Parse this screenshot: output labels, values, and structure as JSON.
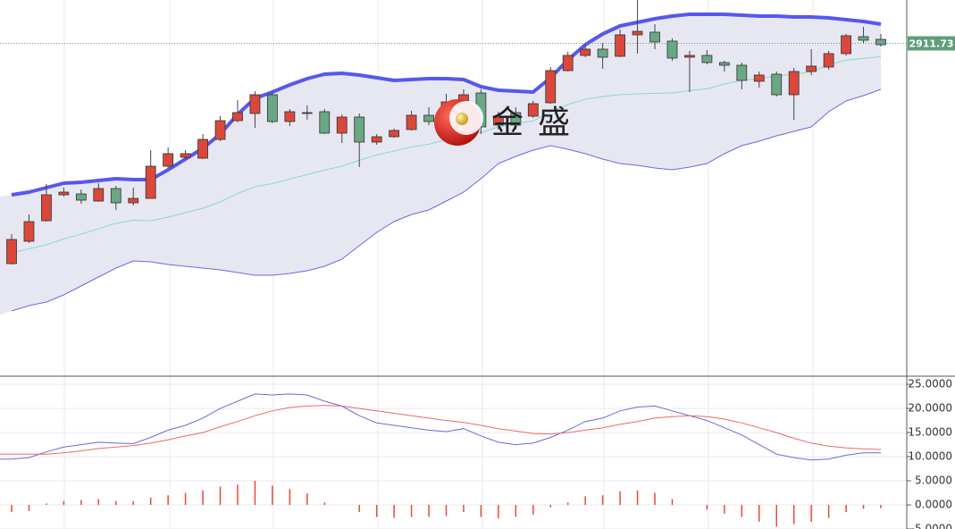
{
  "chart_data": [
    {
      "type": "candlestick",
      "ylim": [
        2726,
        2936
      ],
      "up_color": "#d9483b",
      "down_color": "#6aa784",
      "open": [
        2788.5,
        2801,
        2812.5,
        2827,
        2827.5,
        2823.5,
        2830.5,
        2822.5,
        2825,
        2843,
        2848,
        2847.5,
        2858,
        2868.5,
        2872.5,
        2883,
        2868,
        2873,
        2873.5,
        2861.5,
        2870.5,
        2856.5,
        2859.5,
        2863.5,
        2871.5,
        2872,
        2871,
        2884,
        2866,
        2873,
        2871,
        2878.5,
        2896.5,
        2905,
        2908.5,
        2904.5,
        2916.5,
        2918,
        2913,
        2904,
        2905,
        2901,
        2899.5,
        2890.5,
        2894.5,
        2883,
        2896,
        2898.5,
        2906,
        2915.5,
        2914
      ],
      "high": [
        2805,
        2816,
        2833,
        2831,
        2830,
        2833.5,
        2832,
        2831,
        2852,
        2853.5,
        2852,
        2861,
        2871,
        2880,
        2885,
        2884.5,
        2875,
        2877,
        2875,
        2872,
        2872.5,
        2861,
        2864,
        2874,
        2876,
        2883.5,
        2886,
        2886,
        2873.5,
        2876,
        2879.5,
        2898.5,
        2907,
        2911,
        2912,
        2919.5,
        2936,
        2922.5,
        2914.5,
        2907.5,
        2908,
        2902,
        2901,
        2896,
        2896,
        2898,
        2908.5,
        2907.5,
        2917,
        2921,
        2917
      ],
      "low": [
        2788,
        2800,
        2812,
        2826,
        2822,
        2823,
        2818.5,
        2821,
        2825,
        2842,
        2847,
        2847,
        2857,
        2867.5,
        2864.5,
        2867,
        2865.5,
        2869,
        2861,
        2856,
        2842.5,
        2855,
        2859,
        2863,
        2866,
        2870,
        2868.5,
        2861,
        2863.5,
        2863.5,
        2870,
        2878,
        2896,
        2904,
        2897.5,
        2904,
        2906,
        2908.5,
        2902,
        2884.5,
        2900,
        2896,
        2886,
        2887,
        2882,
        2869,
        2894,
        2897,
        2905,
        2912,
        2910
      ],
      "close": [
        2802,
        2812,
        2827,
        2828.5,
        2824,
        2830.5,
        2822.5,
        2825,
        2843,
        2850,
        2850,
        2858,
        2868.5,
        2873,
        2883,
        2868,
        2873.5,
        2873,
        2861.5,
        2870.5,
        2856.5,
        2859.5,
        2863,
        2871.5,
        2868,
        2879,
        2883,
        2865,
        2871,
        2866,
        2878,
        2896.5,
        2905,
        2908.5,
        2904,
        2916.5,
        2918.5,
        2912.5,
        2903.5,
        2905,
        2901,
        2899.5,
        2891,
        2894,
        2883,
        2896,
        2899,
        2906,
        2916,
        2913.5,
        2911
      ],
      "upper": [
        2827,
        2828.5,
        2831,
        2833.5,
        2834,
        2835,
        2836,
        2835.5,
        2835.5,
        2841,
        2847,
        2853,
        2861,
        2872,
        2881,
        2884.5,
        2888.5,
        2892,
        2894.5,
        2895,
        2894,
        2892.5,
        2891,
        2891.5,
        2892,
        2892,
        2891.5,
        2887.5,
        2885.5,
        2885,
        2884.5,
        2892.5,
        2902.5,
        2911,
        2917,
        2921.5,
        2923.5,
        2925.5,
        2927,
        2928,
        2928,
        2928,
        2927.5,
        2927,
        2927,
        2926.5,
        2926.5,
        2926,
        2925,
        2924,
        2922.5
      ],
      "middle": [
        2794.5,
        2796.8,
        2799,
        2802.3,
        2805,
        2808,
        2811,
        2812.8,
        2812.5,
        2814.5,
        2817,
        2819.5,
        2823,
        2827.8,
        2831.5,
        2833.3,
        2835.8,
        2838.3,
        2840.8,
        2843,
        2846.3,
        2849.3,
        2851.5,
        2853.8,
        2855.3,
        2857.8,
        2860,
        2861.8,
        2865,
        2866.8,
        2868.3,
        2873.5,
        2877.5,
        2880.5,
        2882,
        2883,
        2883.5,
        2883.8,
        2884,
        2885.3,
        2886.3,
        2889,
        2891,
        2892,
        2893.5,
        2894.5,
        2895.8,
        2899.8,
        2902.3,
        2903.3,
        2904.3
      ],
      "lower": [
        2762,
        2765,
        2767,
        2771,
        2776,
        2781,
        2786,
        2790,
        2789.5,
        2788,
        2787,
        2786,
        2785,
        2783.5,
        2782,
        2782,
        2783,
        2784.5,
        2787,
        2791,
        2798.5,
        2806,
        2812,
        2816,
        2818.5,
        2823.5,
        2828.5,
        2836,
        2844.5,
        2848.5,
        2852,
        2854.5,
        2852.5,
        2850,
        2847,
        2844.5,
        2843.5,
        2842,
        2841,
        2842.5,
        2844.5,
        2850,
        2854.5,
        2857,
        2860,
        2862.5,
        2865,
        2873.5,
        2879.5,
        2882.5,
        2886
      ],
      "upper_color": "#5757ee",
      "middle_color": "#86d9c8",
      "lower_color": "#6a6ade",
      "band_fill": "#e7e7f2",
      "last_price": 2911.73,
      "last_price_color": "#5f9e7c",
      "watermark": [
        "金",
        "盛"
      ]
    },
    {
      "type": "line",
      "ylim": [
        -5,
        26.5
      ],
      "yticks": [
        {
          "value": 25,
          "label": "25.0000"
        },
        {
          "value": 20,
          "label": "20.0000"
        },
        {
          "value": 15,
          "label": "15.0000"
        },
        {
          "value": 10,
          "label": "10.0000"
        },
        {
          "value": 5,
          "label": "5.0000"
        },
        {
          "value": 0,
          "label": "0.0000"
        },
        {
          "value": -5,
          "label": "-5.0000"
        }
      ],
      "grid": true,
      "series": [
        {
          "color": "#6a6ad8",
          "values": [
            9.5,
            9.8,
            11,
            12,
            12.5,
            13,
            12.8,
            12.7,
            14,
            15.5,
            16.5,
            18,
            20,
            21.5,
            23,
            22.8,
            23,
            22.8,
            21.5,
            20.5,
            18.5,
            17,
            16.5,
            16,
            15.5,
            15.2,
            15.8,
            14.3,
            13,
            12.5,
            12.8,
            14,
            15.5,
            17.3,
            18,
            19.5,
            20.3,
            20.5,
            19.5,
            18.5,
            17.5,
            16,
            14.5,
            12.5,
            10.5,
            9.8,
            9.3,
            9.5,
            10.3,
            10.8,
            10.8
          ]
        },
        {
          "color": "#e86a6a",
          "values": [
            10.5,
            10.5,
            10.5,
            10.8,
            11.2,
            11.7,
            12,
            12.3,
            12.8,
            13.5,
            14.3,
            15,
            16.2,
            17.3,
            18.5,
            19.5,
            20.2,
            20.5,
            20.6,
            20.5,
            20,
            19.5,
            19,
            18.5,
            18,
            17.5,
            17.1,
            16.5,
            15.8,
            15.3,
            14.8,
            14.7,
            15,
            15.5,
            16,
            16.7,
            17.3,
            18,
            18.3,
            18.5,
            18.3,
            17.8,
            17,
            16,
            15,
            13.8,
            12.8,
            12.2,
            11.8,
            11.6,
            11.5
          ]
        }
      ],
      "bars": {
        "color": "#e8483c",
        "values": [
          -1.5,
          -1.3,
          0.3,
          0.8,
          1,
          1.2,
          0.8,
          0.8,
          1.5,
          2,
          2.5,
          3,
          3.8,
          4.2,
          5,
          4,
          3.3,
          2.4,
          0.5,
          0,
          -1.5,
          -2.5,
          -2.7,
          -2.5,
          -2.5,
          -2.3,
          -1.5,
          -2.5,
          -2.8,
          -2.5,
          -2,
          -0.5,
          0.5,
          1.8,
          2,
          2.8,
          3,
          2.5,
          1.2,
          0,
          -1,
          -1.8,
          -2.5,
          -3.5,
          -4.5,
          -4,
          -3.5,
          -2.7,
          -1.5,
          -0.8,
          -0.7
        ]
      }
    }
  ]
}
